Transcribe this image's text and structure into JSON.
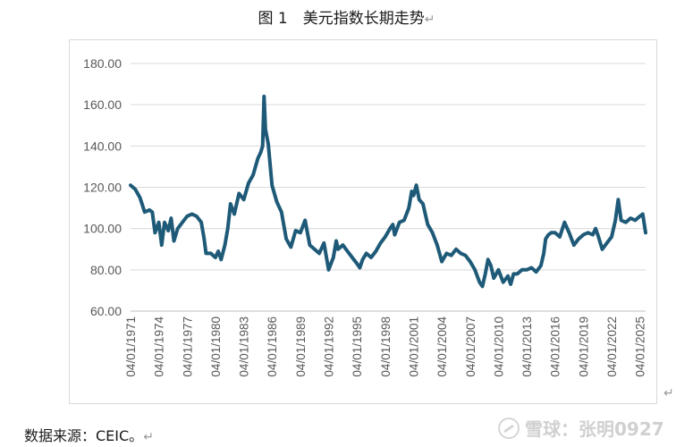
{
  "figure": {
    "caption": "图 1　美元指数长期走势",
    "return_mark": "↵"
  },
  "source_text": "数据来源：CEIC。",
  "source_return_mark": "↵",
  "watermark": "雪球：张明0927",
  "chart_data": {
    "type": "line",
    "title": "",
    "xlabel": "",
    "ylabel": "",
    "ylim": [
      60,
      180
    ],
    "y_ticks": [
      "60.00",
      "80.00",
      "100.00",
      "120.00",
      "140.00",
      "160.00",
      "180.00"
    ],
    "x_ticks": [
      "04/01/1971",
      "04/01/1974",
      "04/01/1977",
      "04/01/1980",
      "04/01/1983",
      "04/01/1986",
      "04/01/1989",
      "04/01/1992",
      "04/01/1995",
      "04/01/1998",
      "04/01/2001",
      "04/01/2004",
      "04/01/2007",
      "04/01/2010",
      "04/01/2013",
      "04/01/2016",
      "04/01/2019",
      "04/01/2022",
      "04/01/2025"
    ],
    "x_range": [
      1971.0,
      2025.6
    ],
    "grid": true,
    "line_color": "#1e5a78",
    "series": [
      {
        "x": [
          1971.0,
          1971.5,
          1972.0,
          1972.5,
          1973.0,
          1973.3,
          1973.6,
          1974.0,
          1974.3,
          1974.6,
          1975.0,
          1975.3,
          1975.6,
          1976.0,
          1976.5,
          1977.0,
          1977.5,
          1978.0,
          1978.5,
          1978.8,
          1979.0,
          1979.5,
          1980.0,
          1980.3,
          1980.6,
          1981.0,
          1981.3,
          1981.6,
          1982.0,
          1982.5,
          1983.0,
          1983.5,
          1984.0,
          1984.5,
          1984.8,
          1985.0,
          1985.15,
          1985.3,
          1985.6,
          1986.0,
          1986.5,
          1987.0,
          1987.5,
          1988.0,
          1988.5,
          1989.0,
          1989.5,
          1990.0,
          1990.5,
          1991.0,
          1991.5,
          1992.0,
          1992.5,
          1992.8,
          1993.0,
          1993.5,
          1994.0,
          1994.5,
          1995.0,
          1995.3,
          1995.6,
          1996.0,
          1996.5,
          1997.0,
          1997.5,
          1998.0,
          1998.5,
          1998.8,
          1999.0,
          1999.5,
          2000.0,
          2000.5,
          2000.8,
          2001.0,
          2001.3,
          2001.6,
          2002.0,
          2002.5,
          2003.0,
          2003.5,
          2004.0,
          2004.5,
          2005.0,
          2005.5,
          2006.0,
          2006.5,
          2007.0,
          2007.5,
          2008.0,
          2008.3,
          2008.6,
          2008.9,
          2009.2,
          2009.5,
          2010.0,
          2010.5,
          2011.0,
          2011.3,
          2011.6,
          2012.0,
          2012.5,
          2013.0,
          2013.5,
          2014.0,
          2014.5,
          2014.8,
          2015.0,
          2015.3,
          2015.6,
          2016.0,
          2016.5,
          2017.0,
          2017.5,
          2018.0,
          2018.5,
          2019.0,
          2019.5,
          2020.0,
          2020.3,
          2020.6,
          2021.0,
          2021.5,
          2022.0,
          2022.4,
          2022.7,
          2023.0,
          2023.5,
          2024.0,
          2024.5,
          2025.0,
          2025.3,
          2025.6
        ],
        "values": [
          121,
          119,
          115,
          108,
          109,
          108,
          98,
          103,
          92,
          103,
          99,
          105,
          94,
          100,
          103,
          106,
          107,
          106,
          103,
          95,
          88,
          88,
          86,
          89,
          85,
          92,
          100,
          112,
          107,
          117,
          114,
          122,
          126,
          134,
          137,
          140,
          164,
          148,
          141,
          121,
          113,
          108,
          95,
          91,
          99,
          98,
          104,
          92,
          90,
          88,
          93,
          80,
          86,
          94,
          90,
          92,
          89,
          86,
          83,
          81,
          85,
          88,
          86,
          89,
          93,
          96,
          100,
          102,
          97,
          103,
          104,
          110,
          118,
          116,
          121,
          114,
          112,
          102,
          98,
          92,
          84,
          88,
          87,
          90,
          88,
          87,
          84,
          80,
          74,
          72,
          78,
          85,
          82,
          76,
          80,
          74,
          77,
          73,
          78,
          78,
          80,
          80,
          81,
          79,
          82,
          88,
          95,
          97,
          98,
          98,
          96,
          103,
          98,
          92,
          95,
          97,
          98,
          97,
          100,
          96,
          90,
          93,
          96,
          104,
          114,
          104,
          103,
          105,
          104,
          106,
          107,
          98
        ]
      }
    ]
  }
}
